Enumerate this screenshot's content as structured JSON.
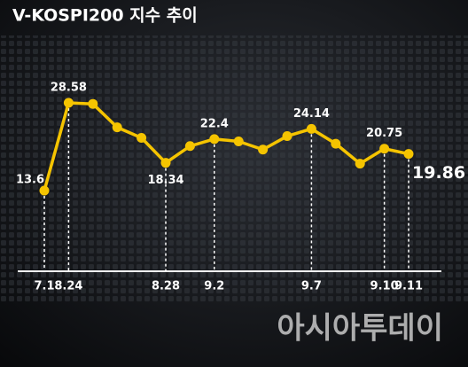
{
  "chart_data": {
    "type": "line",
    "title": "V-KOSPI200 지수 추이",
    "categories": [
      "7.1",
      "8.24",
      null,
      null,
      null,
      "8.28",
      null,
      "9.2",
      null,
      null,
      null,
      "9.7",
      null,
      null,
      "9.10",
      "9.11"
    ],
    "series": [
      {
        "color": "#f5c400",
        "values": [
          13.6,
          28.58,
          28.4,
          24.4,
          22.6,
          18.34,
          21.2,
          22.4,
          22.0,
          20.6,
          22.9,
          24.14,
          21.6,
          18.2,
          20.75,
          19.86
        ]
      }
    ]
  },
  "logo": "아시아투데이"
}
